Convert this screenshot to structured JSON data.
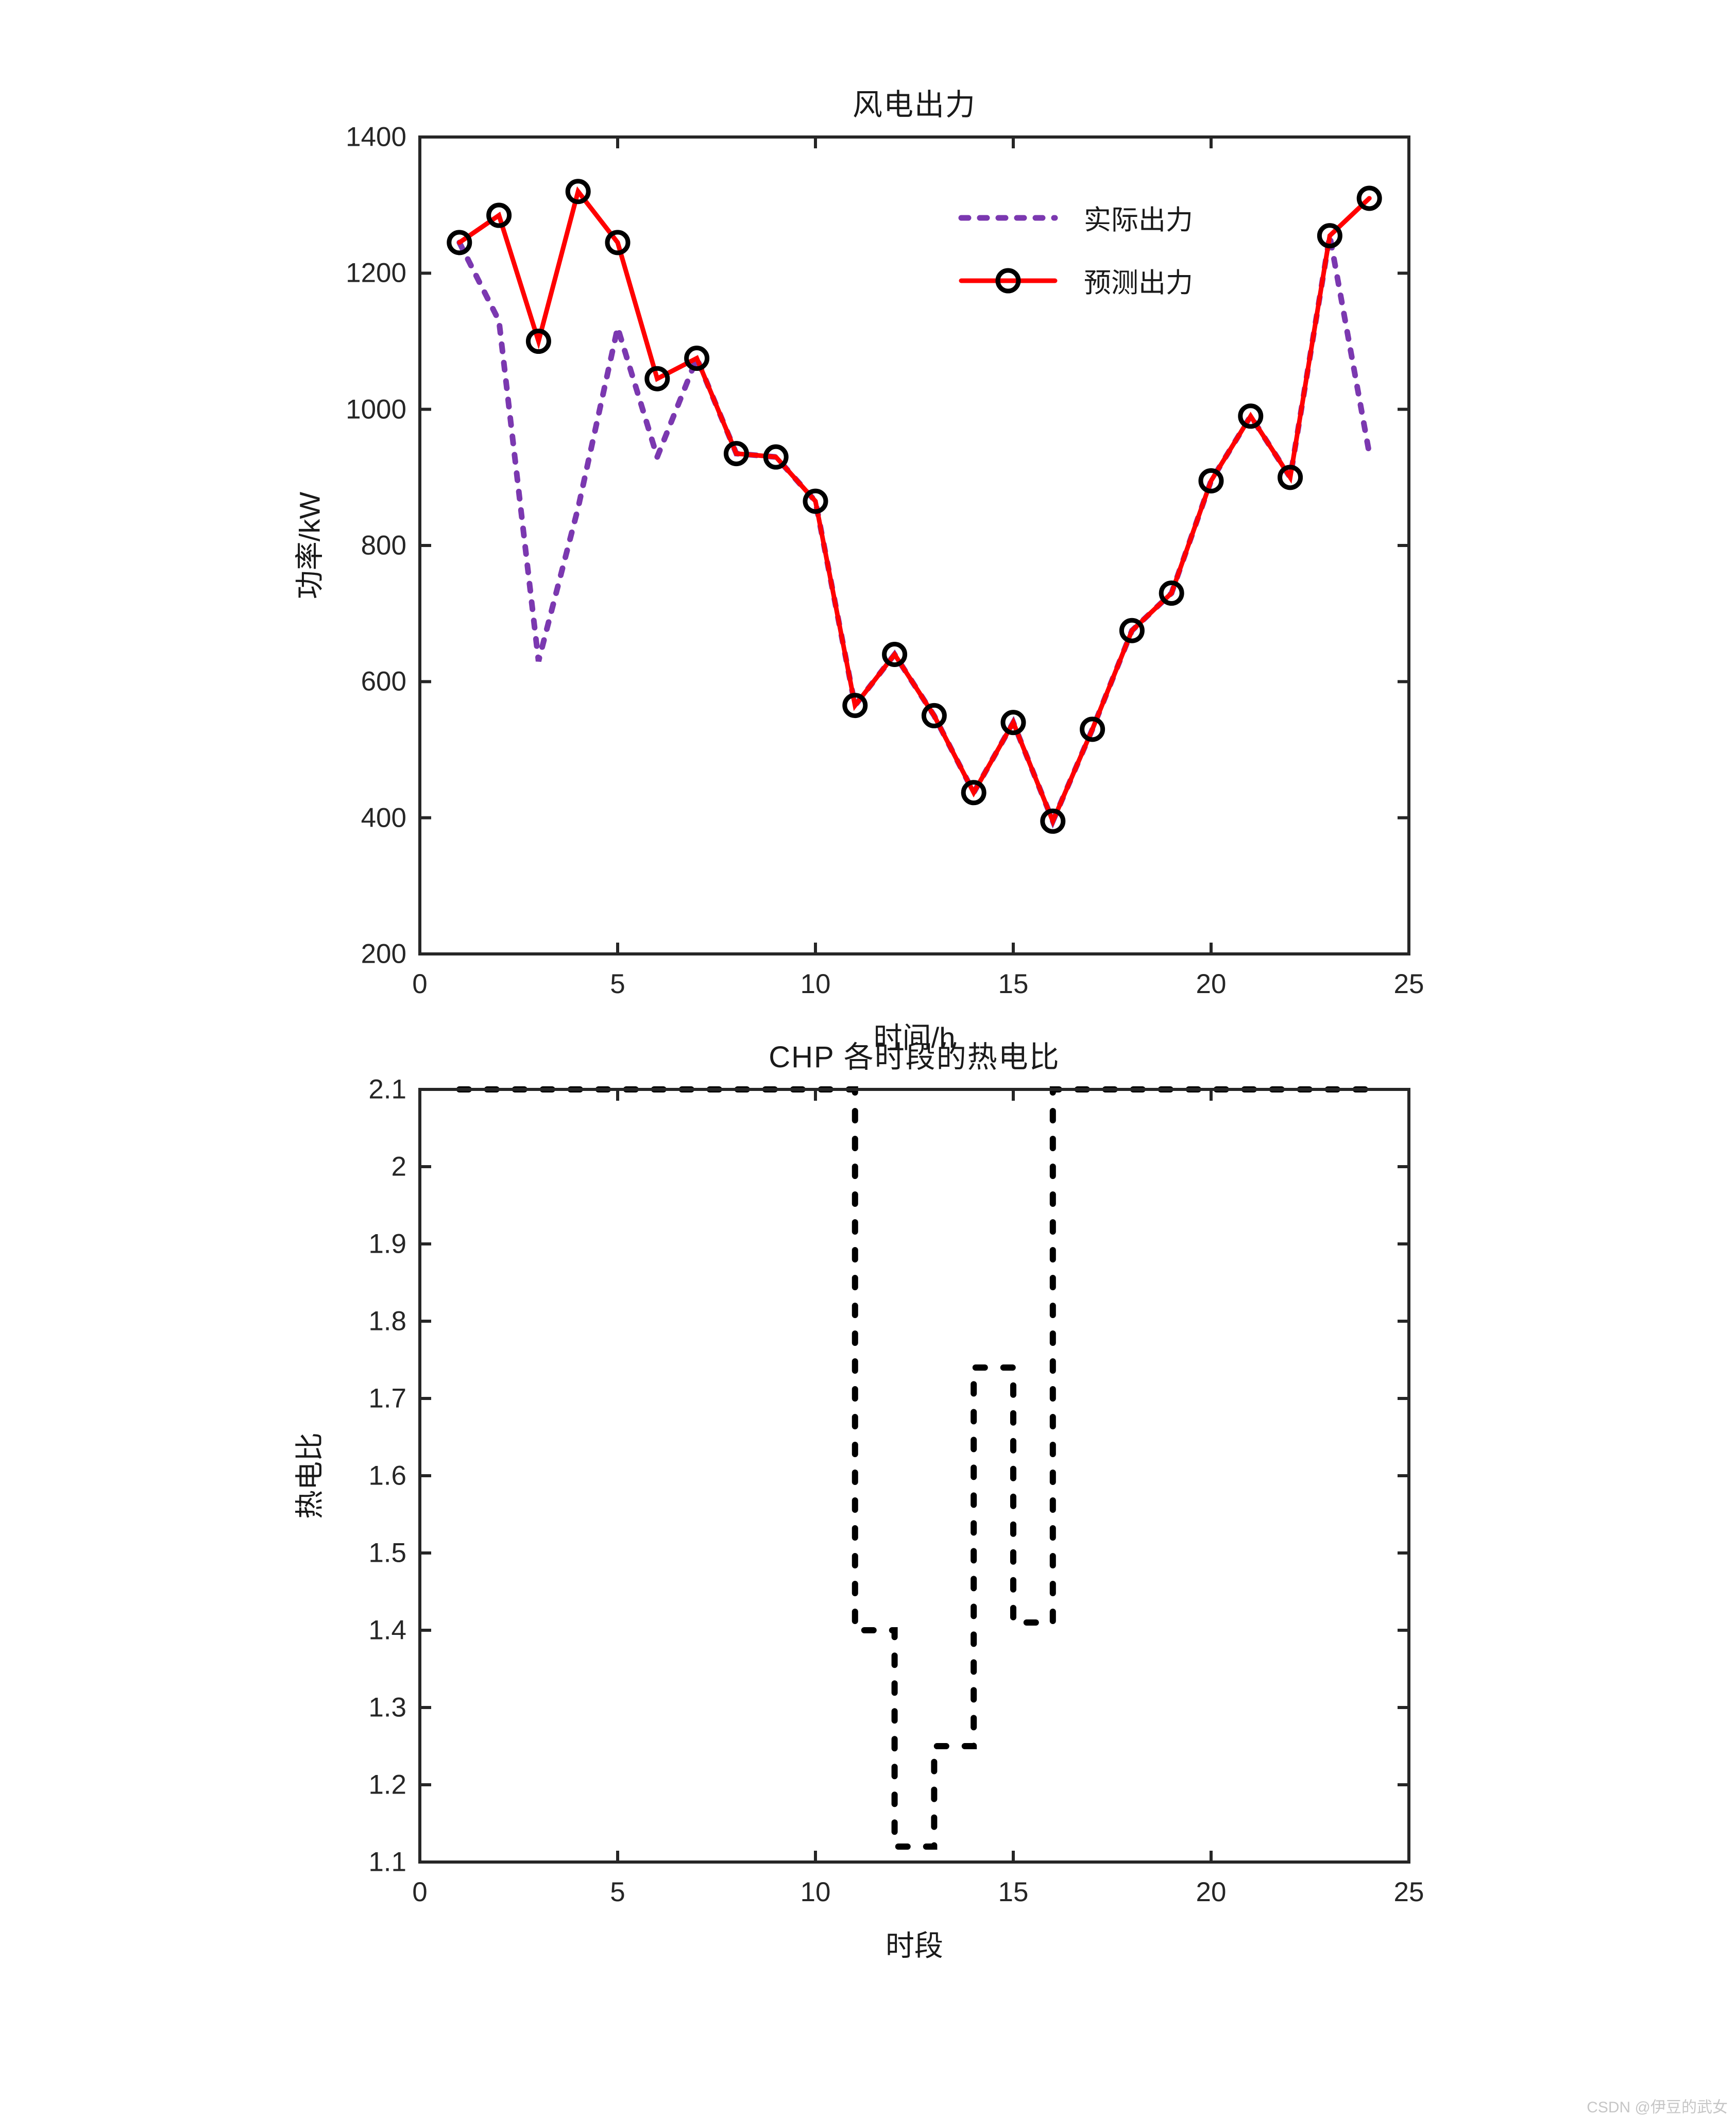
{
  "watermark": "CSDN @伊豆的武女",
  "chart_data": [
    {
      "type": "line",
      "title": "风电出力",
      "xlabel": "时间/h",
      "ylabel": "功率/kW",
      "xlim": [
        0,
        25
      ],
      "ylim": [
        200,
        1400
      ],
      "xticks": [
        0,
        5,
        10,
        15,
        20,
        25
      ],
      "yticks": [
        200,
        400,
        600,
        800,
        1000,
        1200,
        1400
      ],
      "grid": false,
      "legend_position": "upper-right-inside",
      "x": [
        1,
        2,
        3,
        4,
        5,
        6,
        7,
        8,
        9,
        10,
        11,
        12,
        13,
        14,
        15,
        16,
        17,
        18,
        19,
        20,
        21,
        22,
        23,
        24
      ],
      "series": [
        {
          "name": "实际出力",
          "color": "#7B38B0",
          "style": "dashed",
          "marker": "none",
          "values": [
            1245,
            1130,
            630,
            855,
            1120,
            930,
            1075,
            935,
            930,
            865,
            565,
            640,
            550,
            437,
            540,
            395,
            530,
            675,
            730,
            895,
            990,
            900,
            1255,
            935
          ]
        },
        {
          "name": "预测出力",
          "color": "#FF0000",
          "style": "solid",
          "marker": "circle",
          "marker_color": "#000000",
          "values": [
            1245,
            1285,
            1100,
            1320,
            1245,
            1045,
            1075,
            935,
            930,
            865,
            565,
            640,
            550,
            437,
            540,
            395,
            530,
            675,
            730,
            895,
            990,
            900,
            1255,
            1310
          ]
        }
      ]
    },
    {
      "type": "step",
      "title": "CHP  各时段的热电比",
      "xlabel": "时段",
      "ylabel": "热电比",
      "xlim": [
        0,
        25
      ],
      "ylim": [
        1.1,
        2.1
      ],
      "xticks": [
        0,
        5,
        10,
        15,
        20,
        25
      ],
      "yticks": [
        1.1,
        1.2,
        1.3,
        1.4,
        1.5,
        1.6,
        1.7,
        1.8,
        1.9,
        2,
        2.1
      ],
      "grid": false,
      "x": [
        1,
        2,
        3,
        4,
        5,
        6,
        7,
        8,
        9,
        10,
        11,
        12,
        13,
        14,
        15,
        16,
        17,
        18,
        19,
        20,
        21,
        22,
        23,
        24
      ],
      "series": [
        {
          "name": "热电比",
          "color": "#000000",
          "style": "dashed",
          "marker": "none",
          "values": [
            2.1,
            2.1,
            2.1,
            2.1,
            2.1,
            2.1,
            2.1,
            2.1,
            2.1,
            2.1,
            1.4,
            1.12,
            1.25,
            1.74,
            1.41,
            2.1,
            2.1,
            2.1,
            2.1,
            2.1,
            2.1,
            2.1,
            2.1,
            2.1
          ]
        }
      ]
    }
  ]
}
